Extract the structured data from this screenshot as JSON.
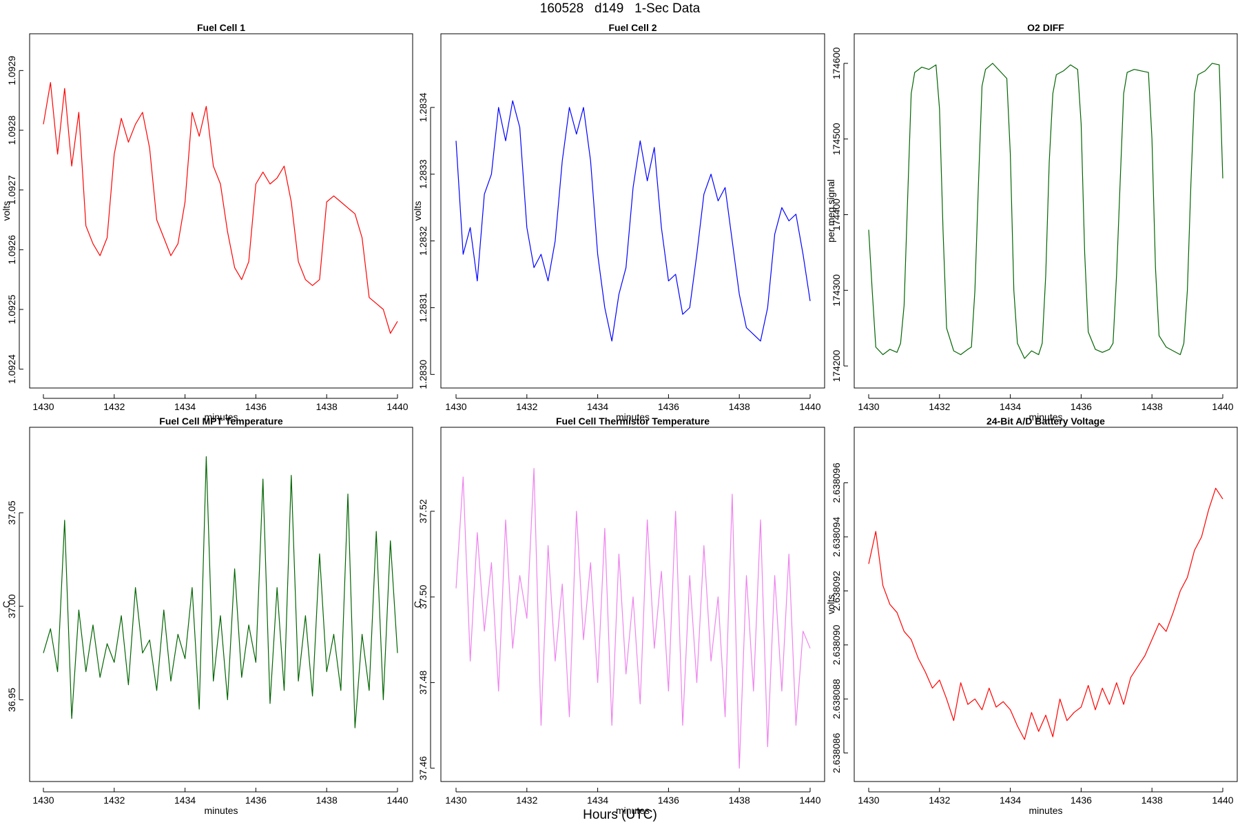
{
  "page": {
    "title": "160528   d149   1-Sec Data",
    "xlabel": "Hours (UTC)"
  },
  "chart_data": [
    {
      "type": "line",
      "title": "Fuel Cell 1",
      "xlabel": "minutes",
      "ylabel": "volts",
      "color": "#ff0000",
      "xlim": [
        1430,
        1440
      ],
      "ylim": [
        1.09238,
        1.09295
      ],
      "xticks": [
        "1430",
        "1432",
        "1434",
        "1436",
        "1438",
        "1440"
      ],
      "yticks": [
        "1.0924",
        "1.0925",
        "1.0926",
        "1.0927",
        "1.0928",
        "1.0929"
      ],
      "series": [
        {
          "x": [
            1430,
            1430.2,
            1430.4,
            1430.6,
            1430.8,
            1431,
            1431.2,
            1431.4,
            1431.6,
            1431.8,
            1432,
            1432.2,
            1432.4,
            1432.6,
            1432.8,
            1433,
            1433.2,
            1433.4,
            1433.6,
            1433.8,
            1434,
            1434.2,
            1434.4,
            1434.6,
            1434.8,
            1435,
            1435.2,
            1435.4,
            1435.6,
            1435.8,
            1436,
            1436.2,
            1436.4,
            1436.6,
            1436.8,
            1437,
            1437.2,
            1437.4,
            1437.6,
            1437.8,
            1438,
            1438.2,
            1438.4,
            1438.6,
            1438.8,
            1439,
            1439.2,
            1439.4,
            1439.6,
            1439.8,
            1440
          ],
          "values": [
            1.09281,
            1.09288,
            1.09276,
            1.09287,
            1.09274,
            1.09283,
            1.09264,
            1.09261,
            1.09259,
            1.09262,
            1.09276,
            1.09282,
            1.09278,
            1.09281,
            1.09283,
            1.09277,
            1.09265,
            1.09262,
            1.09259,
            1.09261,
            1.09268,
            1.09283,
            1.09279,
            1.09284,
            1.09274,
            1.09271,
            1.09263,
            1.09257,
            1.09255,
            1.09258,
            1.09271,
            1.09273,
            1.09271,
            1.09272,
            1.09274,
            1.09268,
            1.09258,
            1.09255,
            1.09254,
            1.09255,
            1.09268,
            1.09269,
            1.09268,
            1.09267,
            1.09266,
            1.09262,
            1.09252,
            1.09251,
            1.0925,
            1.09246,
            1.09248
          ]
        }
      ]
    },
    {
      "type": "line",
      "title": "Fuel Cell 2",
      "xlabel": "minutes",
      "ylabel": "volts",
      "color": "#0000ff",
      "xlim": [
        1430,
        1440
      ],
      "ylim": [
        1.28299,
        1.2835
      ],
      "xticks": [
        "1430",
        "1432",
        "1434",
        "1436",
        "1438",
        "1440"
      ],
      "yticks": [
        "1.2830",
        "1.2831",
        "1.2832",
        "1.2833",
        "1.2834"
      ],
      "series": [
        {
          "x": [
            1430,
            1430.2,
            1430.4,
            1430.6,
            1430.8,
            1431,
            1431.2,
            1431.4,
            1431.6,
            1431.8,
            1432,
            1432.2,
            1432.4,
            1432.6,
            1432.8,
            1433,
            1433.2,
            1433.4,
            1433.6,
            1433.8,
            1434,
            1434.2,
            1434.4,
            1434.6,
            1434.8,
            1435,
            1435.2,
            1435.4,
            1435.6,
            1435.8,
            1436,
            1436.2,
            1436.4,
            1436.6,
            1436.8,
            1437,
            1437.2,
            1437.4,
            1437.6,
            1437.8,
            1438,
            1438.2,
            1438.4,
            1438.6,
            1438.8,
            1439,
            1439.2,
            1439.4,
            1439.6,
            1439.8,
            1440
          ],
          "values": [
            1.28335,
            1.28318,
            1.28322,
            1.28314,
            1.28327,
            1.2833,
            1.2834,
            1.28335,
            1.28341,
            1.28337,
            1.28322,
            1.28316,
            1.28318,
            1.28314,
            1.2832,
            1.28332,
            1.2834,
            1.28336,
            1.2834,
            1.28332,
            1.28318,
            1.2831,
            1.28305,
            1.28312,
            1.28316,
            1.28328,
            1.28335,
            1.28329,
            1.28334,
            1.28322,
            1.28314,
            1.28315,
            1.28309,
            1.2831,
            1.28318,
            1.28327,
            1.2833,
            1.28326,
            1.28328,
            1.2832,
            1.28312,
            1.28307,
            1.28306,
            1.28305,
            1.2831,
            1.28321,
            1.28325,
            1.28323,
            1.28324,
            1.28318,
            1.28311
          ]
        }
      ]
    },
    {
      "type": "line",
      "title": "O2 DIFF",
      "xlabel": "minutes",
      "ylabel": "per meg signal",
      "color": "#006400",
      "xlim": [
        1430,
        1440
      ],
      "ylim": [
        174180,
        174630
      ],
      "xticks": [
        "1430",
        "1432",
        "1434",
        "1436",
        "1438",
        "1440"
      ],
      "yticks": [
        "174200",
        "174300",
        "174400",
        "174500",
        "174600"
      ],
      "series": [
        {
          "x": [
            1430,
            1430.1,
            1430.2,
            1430.4,
            1430.6,
            1430.8,
            1430.9,
            1431,
            1431.1,
            1431.2,
            1431.3,
            1431.5,
            1431.7,
            1431.9,
            1432,
            1432.1,
            1432.2,
            1432.4,
            1432.6,
            1432.8,
            1432.9,
            1433,
            1433.1,
            1433.2,
            1433.3,
            1433.5,
            1433.7,
            1433.9,
            1434,
            1434.1,
            1434.2,
            1434.4,
            1434.6,
            1434.8,
            1434.9,
            1435,
            1435.1,
            1435.2,
            1435.3,
            1435.5,
            1435.7,
            1435.9,
            1436,
            1436.1,
            1436.2,
            1436.4,
            1436.6,
            1436.8,
            1436.9,
            1437,
            1437.1,
            1437.2,
            1437.3,
            1437.5,
            1437.7,
            1437.9,
            1438,
            1438.1,
            1438.2,
            1438.4,
            1438.6,
            1438.8,
            1438.9,
            1439,
            1439.1,
            1439.2,
            1439.3,
            1439.5,
            1439.7,
            1439.9,
            1440
          ],
          "values": [
            174380,
            174300,
            174225,
            174215,
            174222,
            174218,
            174230,
            174280,
            174420,
            174560,
            174588,
            174595,
            174592,
            174598,
            174540,
            174380,
            174250,
            174220,
            174215,
            174222,
            174225,
            174300,
            174440,
            174570,
            174592,
            174600,
            174590,
            174580,
            174480,
            174300,
            174230,
            174210,
            174220,
            174215,
            174230,
            174320,
            174470,
            174560,
            174585,
            174590,
            174598,
            174592,
            174520,
            174350,
            174245,
            174222,
            174218,
            174222,
            174230,
            174320,
            174440,
            174560,
            174588,
            174592,
            174590,
            174588,
            174500,
            174330,
            174240,
            174225,
            174220,
            174215,
            174230,
            174300,
            174440,
            174560,
            174585,
            174590,
            174600,
            174598,
            174448
          ]
        }
      ]
    },
    {
      "type": "line",
      "title": "Fuel Cell MPT Temperature",
      "xlabel": "minutes",
      "ylabel": "C",
      "color": "#006400",
      "xlim": [
        1430,
        1440
      ],
      "ylim": [
        36.91,
        37.092
      ],
      "xticks": [
        "1430",
        "1432",
        "1434",
        "1436",
        "1438",
        "1440"
      ],
      "yticks": [
        "36.95",
        "37.00",
        "37.05"
      ],
      "series": [
        {
          "x": [
            1430,
            1430.2,
            1430.4,
            1430.6,
            1430.8,
            1431,
            1431.2,
            1431.4,
            1431.6,
            1431.8,
            1432,
            1432.2,
            1432.4,
            1432.6,
            1432.8,
            1433,
            1433.2,
            1433.4,
            1433.6,
            1433.8,
            1434,
            1434.2,
            1434.4,
            1434.6,
            1434.8,
            1435,
            1435.2,
            1435.4,
            1435.6,
            1435.8,
            1436,
            1436.2,
            1436.4,
            1436.6,
            1436.8,
            1437,
            1437.2,
            1437.4,
            1437.6,
            1437.8,
            1438,
            1438.2,
            1438.4,
            1438.6,
            1438.8,
            1439,
            1439.2,
            1439.4,
            1439.6,
            1439.8,
            1440
          ],
          "values": [
            36.975,
            36.988,
            36.965,
            37.046,
            36.94,
            36.998,
            36.965,
            36.99,
            36.962,
            36.98,
            36.97,
            36.995,
            36.958,
            37.01,
            36.975,
            36.982,
            36.955,
            36.998,
            36.96,
            36.985,
            36.972,
            37.01,
            36.945,
            37.08,
            36.96,
            36.995,
            36.95,
            37.02,
            36.962,
            36.99,
            36.97,
            37.068,
            36.948,
            37.01,
            36.955,
            37.07,
            36.96,
            36.995,
            36.952,
            37.028,
            36.965,
            36.985,
            36.955,
            37.06,
            36.935,
            36.985,
            36.955,
            37.04,
            36.95,
            37.035,
            36.975
          ]
        }
      ]
    },
    {
      "type": "line",
      "title": "Fuel Cell Thermistor Temperature",
      "xlabel": "minutes",
      "ylabel": "C",
      "color": "#ee82ee",
      "xlim": [
        1430,
        1440
      ],
      "ylim": [
        37.4585,
        37.538
      ],
      "xticks": [
        "1430",
        "1432",
        "1434",
        "1436",
        "1438",
        "1440"
      ],
      "yticks": [
        "37.46",
        "37.48",
        "37.50",
        "37.52"
      ],
      "series": [
        {
          "x": [
            1430,
            1430.2,
            1430.4,
            1430.6,
            1430.8,
            1431,
            1431.2,
            1431.4,
            1431.6,
            1431.8,
            1432,
            1432.2,
            1432.4,
            1432.6,
            1432.8,
            1433,
            1433.2,
            1433.4,
            1433.6,
            1433.8,
            1434,
            1434.2,
            1434.4,
            1434.6,
            1434.8,
            1435,
            1435.2,
            1435.4,
            1435.6,
            1435.8,
            1436,
            1436.2,
            1436.4,
            1436.6,
            1436.8,
            1437,
            1437.2,
            1437.4,
            1437.6,
            1437.8,
            1438,
            1438.2,
            1438.4,
            1438.6,
            1438.8,
            1439,
            1439.2,
            1439.4,
            1439.6,
            1439.8,
            1440
          ],
          "values": [
            37.502,
            37.528,
            37.485,
            37.515,
            37.492,
            37.508,
            37.478,
            37.518,
            37.488,
            37.505,
            37.495,
            37.53,
            37.47,
            37.512,
            37.485,
            37.503,
            37.472,
            37.52,
            37.49,
            37.508,
            37.48,
            37.516,
            37.47,
            37.51,
            37.482,
            37.5,
            37.475,
            37.518,
            37.488,
            37.506,
            37.478,
            37.52,
            37.47,
            37.505,
            37.48,
            37.512,
            37.485,
            37.5,
            37.472,
            37.524,
            37.46,
            37.505,
            37.478,
            37.518,
            37.465,
            37.505,
            37.478,
            37.51,
            37.47,
            37.492,
            37.488
          ]
        }
      ]
    },
    {
      "type": "line",
      "title": "24-Bit A/D Battery Voltage",
      "xlabel": "minutes",
      "ylabel": "volts",
      "color": "#ff0000",
      "xlim": [
        1430,
        1440
      ],
      "ylim": [
        2.6380852,
        2.6380978
      ],
      "xticks": [
        "1430",
        "1432",
        "1434",
        "1436",
        "1438",
        "1440"
      ],
      "yticks": [
        "2.638086",
        "2.638088",
        "2.638090",
        "2.638092",
        "2.638094",
        "2.638096"
      ],
      "series": [
        {
          "x": [
            1430,
            1430.2,
            1430.4,
            1430.6,
            1430.8,
            1431,
            1431.2,
            1431.4,
            1431.6,
            1431.8,
            1432,
            1432.2,
            1432.4,
            1432.6,
            1432.8,
            1433,
            1433.2,
            1433.4,
            1433.6,
            1433.8,
            1434,
            1434.2,
            1434.4,
            1434.6,
            1434.8,
            1435,
            1435.2,
            1435.4,
            1435.6,
            1435.8,
            1436,
            1436.2,
            1436.4,
            1436.6,
            1436.8,
            1437,
            1437.2,
            1437.4,
            1437.6,
            1437.8,
            1438,
            1438.2,
            1438.4,
            1438.6,
            1438.8,
            1439,
            1439.2,
            1439.4,
            1439.6,
            1439.8,
            1440
          ],
          "values": [
            2.638093,
            2.6380942,
            2.6380922,
            2.6380915,
            2.6380912,
            2.6380905,
            2.6380902,
            2.6380895,
            2.638089,
            2.6380884,
            2.6380887,
            2.638088,
            2.6380872,
            2.6380886,
            2.6380878,
            2.638088,
            2.6380876,
            2.6380884,
            2.6380877,
            2.6380879,
            2.6380876,
            2.638087,
            2.6380865,
            2.6380875,
            2.6380868,
            2.6380874,
            2.6380866,
            2.638088,
            2.6380872,
            2.6380875,
            2.6380877,
            2.6380885,
            2.6380876,
            2.6380884,
            2.6380878,
            2.6380886,
            2.6380878,
            2.6380888,
            2.6380892,
            2.6380896,
            2.6380902,
            2.6380908,
            2.6380905,
            2.6380912,
            2.638092,
            2.6380925,
            2.6380935,
            2.638094,
            2.638095,
            2.6380958,
            2.6380954
          ]
        }
      ]
    }
  ]
}
